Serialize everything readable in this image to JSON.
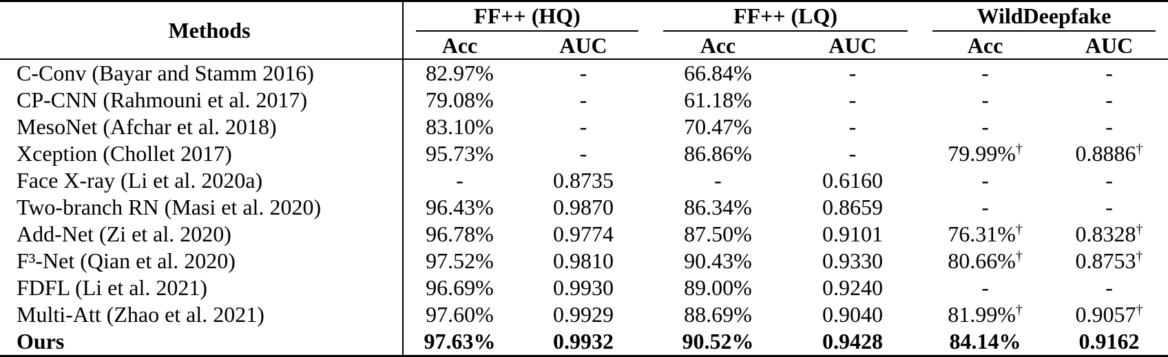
{
  "table": {
    "methods_header": "Methods",
    "groups": [
      {
        "label": "FF++ (HQ)",
        "subcolumns": [
          "Acc",
          "AUC"
        ]
      },
      {
        "label": "FF++ (LQ)",
        "subcolumns": [
          "Acc",
          "AUC"
        ]
      },
      {
        "label": "WildDeepfake",
        "subcolumns": [
          "Acc",
          "AUC"
        ]
      }
    ],
    "rows": [
      {
        "method": "C-Conv (Bayar and Stamm 2016)",
        "bold": false,
        "values": [
          "82.97%",
          "-",
          "66.84%",
          "-",
          "-",
          "-"
        ]
      },
      {
        "method": "CP-CNN (Rahmouni et al. 2017)",
        "bold": false,
        "values": [
          "79.08%",
          "-",
          "61.18%",
          "-",
          "-",
          "-"
        ]
      },
      {
        "method": "MesoNet (Afchar et al. 2018)",
        "bold": false,
        "values": [
          "83.10%",
          "-",
          "70.47%",
          "-",
          "-",
          "-"
        ]
      },
      {
        "method": "Xception (Chollet 2017)",
        "bold": false,
        "values": [
          "95.73%",
          "-",
          "86.86%",
          "-",
          "79.99%†",
          "0.8886†"
        ]
      },
      {
        "method": "Face X-ray (Li et al. 2020a)",
        "bold": false,
        "values": [
          "-",
          "0.8735",
          "-",
          "0.6160",
          "-",
          "-"
        ]
      },
      {
        "method": "Two-branch RN (Masi et al. 2020)",
        "bold": false,
        "values": [
          "96.43%",
          "0.9870",
          "86.34%",
          "0.8659",
          "-",
          "-"
        ]
      },
      {
        "method": "Add-Net (Zi et al. 2020)",
        "bold": false,
        "values": [
          "96.78%",
          "0.9774",
          "87.50%",
          "0.9101",
          "76.31%†",
          "0.8328†"
        ]
      },
      {
        "method": "F³-Net (Qian et al. 2020)",
        "bold": false,
        "values": [
          "97.52%",
          "0.9810",
          "90.43%",
          "0.9330",
          "80.66%†",
          "0.8753†"
        ]
      },
      {
        "method": "FDFL (Li et al. 2021)",
        "bold": false,
        "values": [
          "96.69%",
          "0.9930",
          "89.00%",
          "0.9240",
          "-",
          "-"
        ]
      },
      {
        "method": "Multi-Att (Zhao et al. 2021)",
        "bold": false,
        "values": [
          "97.60%",
          "0.9929",
          "88.69%",
          "0.9040",
          "81.99%†",
          "0.9057†"
        ]
      },
      {
        "method": "Ours",
        "bold": true,
        "values": [
          "97.63%",
          "0.9932",
          "90.52%",
          "0.9428",
          "84.14%",
          "0.9162"
        ]
      }
    ],
    "colors": {
      "text": "#000000",
      "background": "#ffffff",
      "rule": "#000000"
    }
  }
}
